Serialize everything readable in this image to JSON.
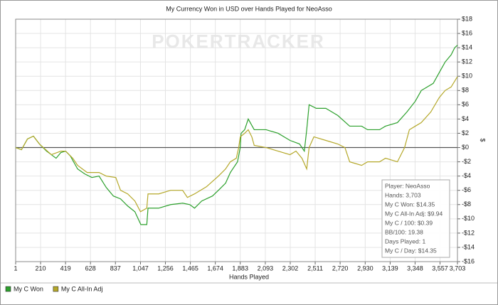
{
  "chart_data": {
    "type": "line",
    "title": "My Currency Won in USD over Hands Played for NeoAsso",
    "watermark": "POKERTRACKER",
    "x_label": "Hands Played",
    "y_label": "$",
    "xlim": [
      1,
      3703
    ],
    "xticks": [
      1,
      210,
      419,
      628,
      837,
      {
        "value": 1047,
        "label": "1,047"
      },
      {
        "value": 1256,
        "label": "1,256"
      },
      {
        "value": 1465,
        "label": "1,465"
      },
      {
        "value": 1674,
        "label": "1,674"
      },
      {
        "value": 1883,
        "label": "1,883"
      },
      {
        "value": 2093,
        "label": "2,093"
      },
      {
        "value": 2302,
        "label": "2,302"
      },
      {
        "value": 2511,
        "label": "2,511"
      },
      {
        "value": 2720,
        "label": "2,720"
      },
      {
        "value": 2930,
        "label": "2,930"
      },
      {
        "value": 3139,
        "label": "3,139"
      },
      {
        "value": 3348,
        "label": "3,348"
      },
      {
        "value": 3557,
        "label": "3,557"
      },
      {
        "value": 3703,
        "label": "3,703"
      }
    ],
    "ylim": [
      -16,
      18
    ],
    "yticks": [
      {
        "value": -16,
        "label": "-$16"
      },
      {
        "value": -14,
        "label": "-$14"
      },
      {
        "value": -12,
        "label": "-$12"
      },
      {
        "value": -10,
        "label": "-$10"
      },
      {
        "value": -8,
        "label": "-$8"
      },
      {
        "value": -6,
        "label": "-$6"
      },
      {
        "value": -4,
        "label": "-$4"
      },
      {
        "value": -2,
        "label": "-$2"
      },
      {
        "value": 0,
        "label": "$0"
      },
      {
        "value": 2,
        "label": "$2"
      },
      {
        "value": 4,
        "label": "$4"
      },
      {
        "value": 6,
        "label": "$6"
      },
      {
        "value": 8,
        "label": "$8"
      },
      {
        "value": 10,
        "label": "$10"
      },
      {
        "value": 12,
        "label": "$12"
      },
      {
        "value": 14,
        "label": "$14"
      },
      {
        "value": 16,
        "label": "$16"
      },
      {
        "value": 18,
        "label": "$18"
      }
    ],
    "grid": true,
    "series": [
      {
        "name": "My C Won",
        "color": "#2ca02c",
        "x": [
          1,
          50,
          100,
          150,
          200,
          260,
          300,
          340,
          380,
          420,
          460,
          520,
          580,
          640,
          700,
          760,
          820,
          880,
          940,
          1000,
          1050,
          1100,
          1110,
          1200,
          1300,
          1400,
          1460,
          1500,
          1560,
          1650,
          1700,
          1760,
          1800,
          1860,
          1883,
          1890,
          1920,
          1950,
          2000,
          2100,
          2200,
          2300,
          2380,
          2420,
          2440,
          2460,
          2520,
          2600,
          2700,
          2800,
          2900,
          2950,
          3050,
          3100,
          3200,
          3280,
          3350,
          3400,
          3500,
          3550,
          3600,
          3650,
          3680,
          3703
        ],
        "values": [
          0,
          -0.3,
          1.2,
          1.6,
          0.5,
          -0.5,
          -1.0,
          -1.5,
          -0.7,
          -0.5,
          -1.2,
          -3.0,
          -3.7,
          -4.2,
          -4.0,
          -5.6,
          -6.8,
          -7.2,
          -8.2,
          -9.0,
          -10.8,
          -10.8,
          -8.5,
          -8.5,
          -8.0,
          -7.8,
          -8.0,
          -8.5,
          -7.5,
          -6.8,
          -6.0,
          -5.0,
          -3.5,
          -2.0,
          0,
          2.0,
          2.5,
          4.0,
          2.5,
          2.5,
          2.0,
          1.0,
          0.5,
          -0.5,
          2.5,
          6.0,
          5.5,
          5.5,
          4.5,
          3.0,
          3.0,
          2.5,
          2.5,
          3.0,
          3.5,
          5.0,
          6.5,
          8.0,
          9.0,
          10.5,
          12.0,
          13.0,
          14.0,
          14.35
        ]
      },
      {
        "name": "My C All-In Adj",
        "color": "#b5a82a",
        "x": [
          1,
          50,
          100,
          150,
          200,
          300,
          380,
          420,
          480,
          520,
          600,
          700,
          760,
          840,
          880,
          940,
          1000,
          1047,
          1100,
          1110,
          1200,
          1300,
          1400,
          1440,
          1500,
          1600,
          1700,
          1760,
          1800,
          1850,
          1870,
          1883,
          1920,
          1950,
          1980,
          2000,
          2100,
          2200,
          2300,
          2350,
          2400,
          2440,
          2460,
          2500,
          2600,
          2700,
          2760,
          2800,
          2900,
          2950,
          3050,
          3100,
          3200,
          3260,
          3300,
          3350,
          3400,
          3480,
          3550,
          3600,
          3650,
          3703
        ],
        "values": [
          0,
          -0.3,
          1.2,
          1.6,
          0.5,
          -1.0,
          -0.5,
          -0.5,
          -1.5,
          -2.5,
          -3.5,
          -3.5,
          -4.0,
          -4.2,
          -6.0,
          -6.5,
          -7.5,
          -9.0,
          -8.5,
          -6.5,
          -6.5,
          -6.0,
          -6.0,
          -7.0,
          -6.5,
          -5.5,
          -4.0,
          -3.0,
          -2.0,
          -1.5,
          0,
          1.5,
          2.0,
          2.5,
          1.5,
          0.3,
          0,
          -0.5,
          -1.0,
          -0.5,
          -1.5,
          -3.0,
          0,
          1.5,
          1.0,
          0.5,
          0,
          -2.0,
          -2.5,
          -2.0,
          -2.0,
          -1.5,
          -2.0,
          0,
          2.5,
          3.0,
          3.5,
          5.0,
          7.0,
          8.0,
          8.5,
          9.94
        ]
      }
    ],
    "info_box": [
      "Player: NeoAsso",
      "Hands: 3,703",
      "My C Won: $14.35",
      "My C All-In Adj: $9.94",
      "My C / 100: $0.39",
      "BB/100: 19.38",
      "Days Played: 1",
      "My C / Day: $14.35"
    ]
  }
}
